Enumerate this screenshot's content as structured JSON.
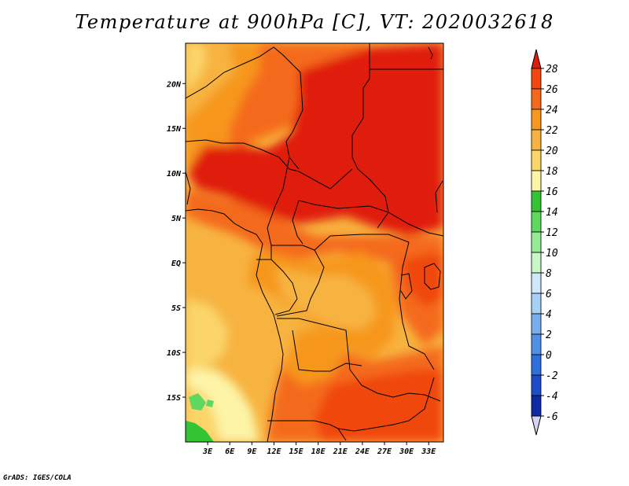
{
  "title": "Temperature at 900hPa [C], VT: 2020032618",
  "credit": "GrADS: IGES/COLA",
  "map": {
    "lon_range": [
      0,
      35
    ],
    "lat_range": [
      -20,
      24.5
    ],
    "x_ticks": [
      {
        "lon": 3,
        "label": "3E"
      },
      {
        "lon": 6,
        "label": "6E"
      },
      {
        "lon": 9,
        "label": "9E"
      },
      {
        "lon": 12,
        "label": "12E"
      },
      {
        "lon": 15,
        "label": "15E"
      },
      {
        "lon": 18,
        "label": "18E"
      },
      {
        "lon": 21,
        "label": "21E"
      },
      {
        "lon": 24,
        "label": "24E"
      },
      {
        "lon": 27,
        "label": "27E"
      },
      {
        "lon": 30,
        "label": "30E"
      },
      {
        "lon": 33,
        "label": "33E"
      }
    ],
    "y_ticks": [
      {
        "lat": 20,
        "label": "20N"
      },
      {
        "lat": 15,
        "label": "15N"
      },
      {
        "lat": 10,
        "label": "10N"
      },
      {
        "lat": 5,
        "label": "5N"
      },
      {
        "lat": 0,
        "label": "EQ"
      },
      {
        "lat": -5,
        "label": "5S"
      },
      {
        "lat": -10,
        "label": "10S"
      },
      {
        "lat": -15,
        "label": "15S"
      }
    ]
  },
  "colorbar": {
    "levels": [
      "28",
      "26",
      "24",
      "22",
      "20",
      "18",
      "16",
      "14",
      "12",
      "10",
      "8",
      "6",
      "4",
      "2",
      "0",
      "-2",
      "-4",
      "-6"
    ],
    "colors": [
      "#e01b0b",
      "#f0470f",
      "#f46a1a",
      "#f6971f",
      "#f7b340",
      "#fbd56a",
      "#fdf4a8",
      "#33c333",
      "#5fd85f",
      "#95ec95",
      "#c8f8c8",
      "#cfe6fb",
      "#a7d0f6",
      "#79aeee",
      "#5090e6",
      "#2f6fdc",
      "#1d4dc8",
      "#0e2aa7",
      "#070b6b"
    ],
    "top_color": "#e01b0b",
    "bottom_color": "#d4d4ee"
  }
}
